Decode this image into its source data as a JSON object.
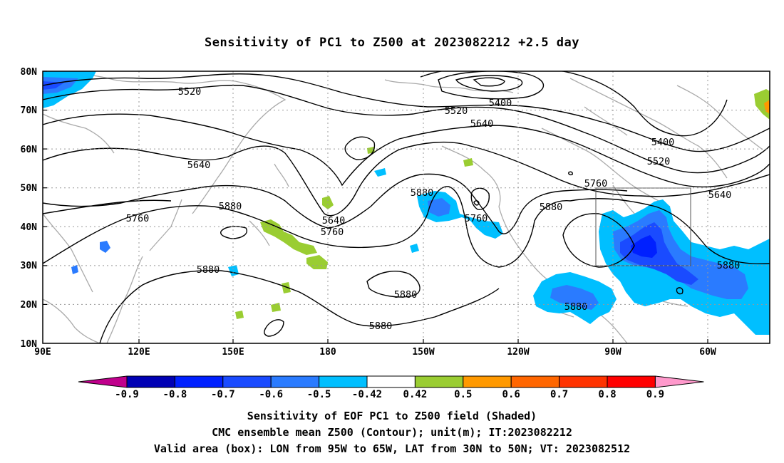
{
  "title": "Sensitivity of PC1 to Z500 at 2023082212 +2.5 day",
  "map": {
    "lat_labels": [
      "80N",
      "70N",
      "60N",
      "50N",
      "40N",
      "30N",
      "20N",
      "10N"
    ],
    "lon_labels": [
      "90E",
      "120E",
      "150E",
      "180",
      "150W",
      "120W",
      "90W",
      "60W"
    ],
    "contour_labels": [
      "5520",
      "5400",
      "5520",
      "5640",
      "5400",
      "5520",
      "5640",
      "5760",
      "5640",
      "5880",
      "5640",
      "5760",
      "5760",
      "5880",
      "5880",
      "5760",
      "5880",
      "5880",
      "5880",
      "5880",
      "5880"
    ],
    "box": {
      "lon_from": "95W",
      "lon_to": "65W",
      "lat_from": "30N",
      "lat_to": "50N"
    }
  },
  "colorbar": {
    "labels": [
      "-0.9",
      "-0.8",
      "-0.7",
      "-0.6",
      "-0.5",
      "-0.42",
      "0.42",
      "0.5",
      "0.6",
      "0.7",
      "0.8",
      "0.9"
    ],
    "colors": [
      "#0000b4",
      "#0020ff",
      "#1a4bff",
      "#2a7bff",
      "#00bfff",
      "#ffffff",
      "#9acd32",
      "#ff9900",
      "#ff6600",
      "#ff3300",
      "#ff0000"
    ],
    "low_end_color": "#c0008c",
    "high_end_color": "#ff99cc"
  },
  "captions": {
    "line1": "Sensitivity of EOF PC1 to Z500 field (Shaded)",
    "line2": "CMC ensemble mean Z500 (Contour); unit(m); IT:2023082212",
    "line3": "Valid area (box): LON from 95W to 65W, LAT from 30N to 50N; VT: 2023082512"
  }
}
